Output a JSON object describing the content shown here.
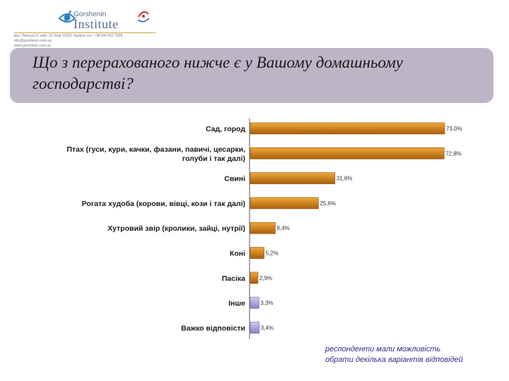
{
  "header": {
    "logo_small": "Gorshenin",
    "logo_big": "Institute",
    "address_line1": "вул. Липська 9, офіс 10, Київ 01021 Україна  тел. +38 044 253 7838  info@gorshenin.com.ua",
    "address_line2": "www.gorshenin.com.ua"
  },
  "question": "Що з перерахованого нижче є у Вашому домашньому господарстві?",
  "footnote": {
    "line1": "респонденти мали можливість",
    "line2": "обрати декілька варіантів відповідей"
  },
  "colors": {
    "bar_main": "#d18318",
    "bar_other": "#a9a8d8",
    "question_bg": "#bdb4c5",
    "footnote": "#2d2d8c"
  },
  "chart_data": {
    "type": "bar",
    "orientation": "horizontal",
    "categories": [
      [
        "Сад, город"
      ],
      [
        "Птах (гуси, кури, качки, фазани, павичі, цесарки,",
        "голуби і так далі)"
      ],
      [
        "Свині"
      ],
      [
        "Рогата худоба (корови, вівці, кози і так далі)"
      ],
      [
        "Хутровий звір (кролики, зайці, нутрії)"
      ],
      [
        "Коні"
      ],
      [
        "Пасіка"
      ],
      [
        "Інше"
      ],
      [
        "Важко відповісти"
      ]
    ],
    "values": [
      73.0,
      72.8,
      31.8,
      25.6,
      9.4,
      5.2,
      2.9,
      3.3,
      3.4
    ],
    "labels": [
      "73,0%",
      "72,8%",
      "31,8%",
      "25,6%",
      "9,4%",
      "5,2%",
      "2,9%",
      "3,3%",
      "3,4%"
    ],
    "bar_colors": [
      "#d18318",
      "#d18318",
      "#d18318",
      "#d18318",
      "#d18318",
      "#d18318",
      "#d18318",
      "#a9a8d8",
      "#a9a8d8"
    ],
    "xlim": [
      0,
      100
    ],
    "grid": false,
    "legend": "none"
  }
}
